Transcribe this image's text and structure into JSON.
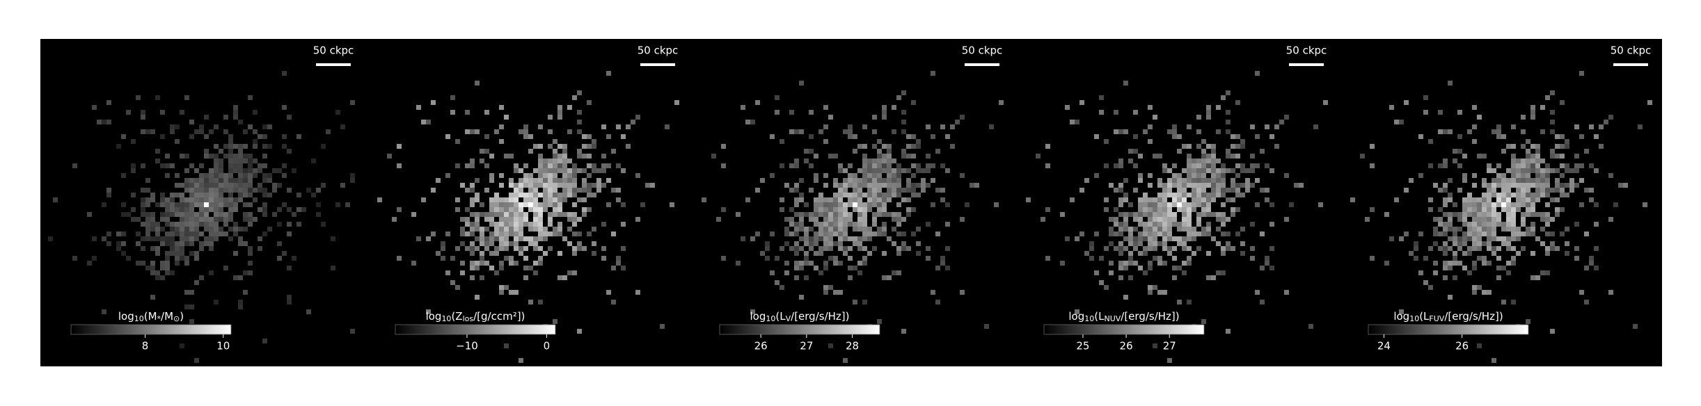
{
  "chart_data": [
    {
      "type": "image",
      "scale_bar_label": "50 ckpc",
      "colorbar": {
        "label_parts": [
          "log",
          "10",
          "(M",
          "*",
          "/M",
          "⊙",
          ")"
        ],
        "clim": [
          6.1,
          10.2
        ],
        "cticks": [
          8,
          10
        ]
      }
    },
    {
      "type": "image",
      "scale_bar_label": "50 ckpc",
      "colorbar": {
        "label_parts": [
          "log",
          "10",
          "(Z",
          "los",
          "/[g/ccm²])"
        ],
        "clim": [
          -19,
          1.1
        ],
        "cticks": [
          {
            "value": -10,
            "label": "−10"
          },
          0
        ]
      }
    },
    {
      "type": "image",
      "scale_bar_label": "50 ckpc",
      "colorbar": {
        "label_parts": [
          "log",
          "10",
          "(L",
          "V",
          "/[erg/s/Hz])"
        ],
        "clim": [
          25.1,
          28.6
        ],
        "cticks": [
          26,
          27,
          28
        ]
      }
    },
    {
      "type": "image",
      "scale_bar_label": "50 ckpc",
      "colorbar": {
        "label_parts": [
          "log",
          "10",
          "(L",
          "NUV",
          "/[erg/s/Hz])"
        ],
        "clim": [
          24.1,
          27.8
        ],
        "cticks": [
          25,
          26,
          27
        ]
      }
    },
    {
      "type": "image",
      "scale_bar_label": "50 ckpc",
      "colorbar": {
        "label_parts": [
          "log",
          "10",
          "(L",
          "FUV",
          "/[erg/s/Hz])"
        ],
        "clim": [
          23.6,
          27.7
        ],
        "cticks": [
          24,
          26
        ]
      }
    }
  ]
}
